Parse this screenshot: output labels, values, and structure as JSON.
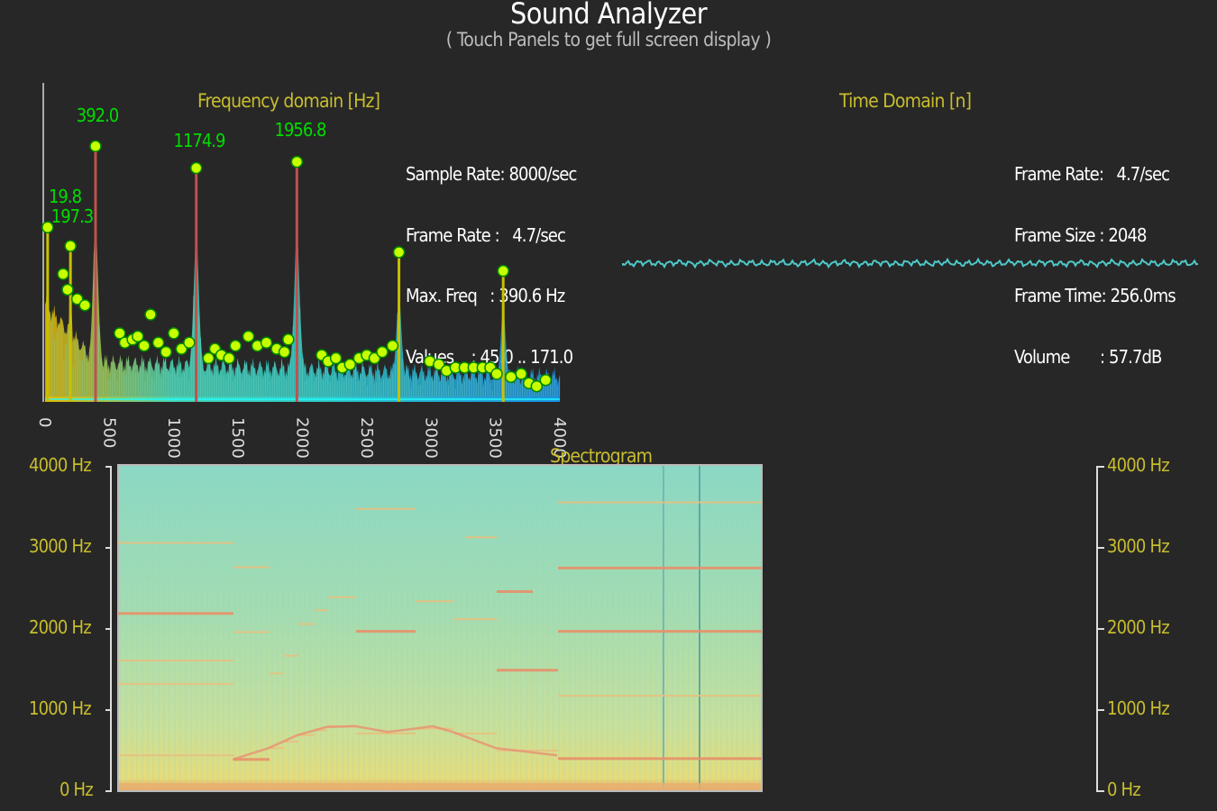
{
  "header": {
    "title": "Sound Analyzer",
    "subtitle": "( Touch Panels to get full screen display )"
  },
  "frequency_panel": {
    "title": "Frequency domain [Hz]",
    "info": {
      "sample_rate": "Sample Rate: 8000/sec",
      "frame_rate": "Frame Rate :   4.7/sec",
      "max_freq": "Max. Freq   : 390.6 Hz",
      "values": "Values    : 45.0 .. 171.0"
    },
    "peak_labels": [
      {
        "text": "392.0",
        "freq": 392
      },
      {
        "text": "1174.9",
        "freq": 1174.9
      },
      {
        "text": "1956.8",
        "freq": 1956.8
      },
      {
        "text": "19.8",
        "freq": 19.8
      },
      {
        "text": "197.3",
        "freq": 197.3
      }
    ],
    "x_ticks": [
      "0",
      "500",
      "1000",
      "1500",
      "2000",
      "2500",
      "3000",
      "3500",
      "4000"
    ],
    "peak_color": "#00dd00",
    "marker_color": "#c8ff00"
  },
  "time_panel": {
    "title": "Time Domain [n]",
    "info": {
      "frame_rate": "Frame Rate:   4.7/sec",
      "frame_size": "Frame Size : 2048",
      "frame_time": "Frame Time: 256.0ms",
      "volume": "Volume       : 57.7dB"
    },
    "wave_color": "#4fc8c8"
  },
  "spectrogram_panel": {
    "title": "Spectrogram",
    "left_ticks": [
      "4000 Hz",
      "3000 Hz",
      "2000 Hz",
      "1000 Hz",
      "0 Hz"
    ],
    "right_ticks": [
      "4000 Hz",
      "3000 Hz",
      "2000 Hz",
      "1000 Hz",
      "0 Hz"
    ]
  },
  "chart_data": {
    "type": "bar",
    "xlabel": "",
    "ylabel": "",
    "xlim": [
      0,
      4000
    ],
    "peaks": [
      {
        "freq": 19.8,
        "level": 0.56
      },
      {
        "freq": 197.3,
        "level": 0.5
      },
      {
        "freq": 392.0,
        "level": 0.82
      },
      {
        "freq": 1174.9,
        "level": 0.75
      },
      {
        "freq": 1956.8,
        "level": 0.77
      },
      {
        "freq": 2750,
        "level": 0.48
      },
      {
        "freq": 3560,
        "level": 0.42
      }
    ],
    "markers": [
      [
        19.8,
        0.56
      ],
      [
        140,
        0.41
      ],
      [
        175,
        0.36
      ],
      [
        197.3,
        0.5
      ],
      [
        250,
        0.33
      ],
      [
        310,
        0.31
      ],
      [
        392,
        0.82
      ],
      [
        580,
        0.22
      ],
      [
        620,
        0.19
      ],
      [
        680,
        0.2
      ],
      [
        720,
        0.21
      ],
      [
        770,
        0.18
      ],
      [
        820,
        0.28
      ],
      [
        880,
        0.19
      ],
      [
        940,
        0.16
      ],
      [
        1000,
        0.22
      ],
      [
        1060,
        0.17
      ],
      [
        1120,
        0.19
      ],
      [
        1174.9,
        0.75
      ],
      [
        1270,
        0.14
      ],
      [
        1320,
        0.17
      ],
      [
        1370,
        0.15
      ],
      [
        1430,
        0.14
      ],
      [
        1480,
        0.18
      ],
      [
        1580,
        0.21
      ],
      [
        1650,
        0.18
      ],
      [
        1720,
        0.19
      ],
      [
        1800,
        0.17
      ],
      [
        1860,
        0.16
      ],
      [
        1890,
        0.2
      ],
      [
        1956.8,
        0.77
      ],
      [
        2150,
        0.15
      ],
      [
        2200,
        0.13
      ],
      [
        2260,
        0.14
      ],
      [
        2310,
        0.11
      ],
      [
        2370,
        0.12
      ],
      [
        2440,
        0.14
      ],
      [
        2500,
        0.15
      ],
      [
        2560,
        0.14
      ],
      [
        2620,
        0.16
      ],
      [
        2700,
        0.18
      ],
      [
        2750,
        0.48
      ],
      [
        2990,
        0.13
      ],
      [
        3060,
        0.12
      ],
      [
        3120,
        0.1
      ],
      [
        3190,
        0.11
      ],
      [
        3260,
        0.11
      ],
      [
        3330,
        0.11
      ],
      [
        3400,
        0.11
      ],
      [
        3460,
        0.11
      ],
      [
        3510,
        0.09
      ],
      [
        3560,
        0.42
      ],
      [
        3620,
        0.08
      ],
      [
        3700,
        0.09
      ],
      [
        3760,
        0.06
      ],
      [
        3820,
        0.05
      ],
      [
        3890,
        0.07
      ]
    ]
  }
}
